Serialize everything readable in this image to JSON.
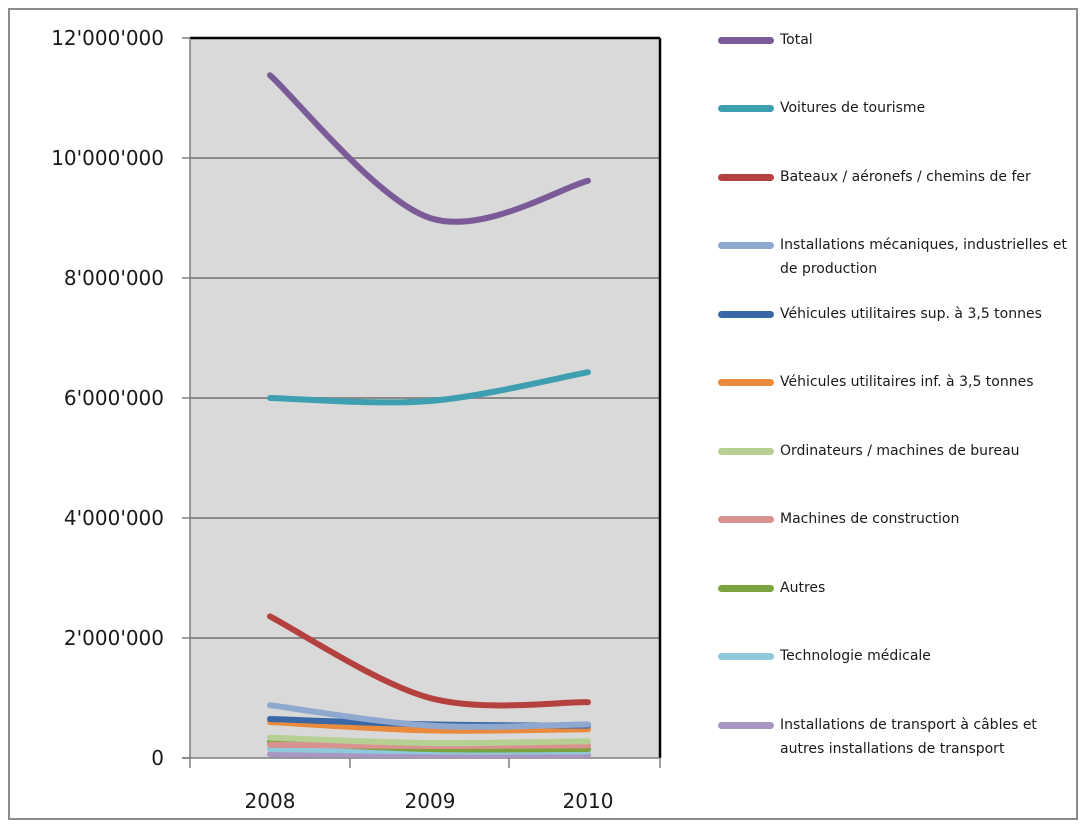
{
  "chart_data": {
    "type": "line",
    "title": "",
    "xlabel": "",
    "ylabel": "",
    "categories": [
      "2008",
      "2009",
      "2010"
    ],
    "ylim": [
      0,
      12000000
    ],
    "yticks": [
      0,
      2000000,
      4000000,
      6000000,
      8000000,
      10000000,
      12000000
    ],
    "ytick_labels": [
      "0",
      "2'000'000",
      "4'000'000",
      "6'000'000",
      "8'000'000",
      "10'000'000",
      "12'000'000"
    ],
    "grid": true,
    "legend_position": "right",
    "series": [
      {
        "name": "Total",
        "color": "#7b5b97",
        "values": [
          11380000,
          9000000,
          9620000
        ]
      },
      {
        "name": "Voitures de tourisme",
        "color": "#3d9fb0",
        "values": [
          6000000,
          5950000,
          6430000
        ]
      },
      {
        "name": "Bateaux / aéronefs / chemins de fer",
        "color": "#b5413f",
        "values": [
          2360000,
          1000000,
          930000
        ]
      },
      {
        "name": "Installations mécaniques, industrielles et de production",
        "color": "#8fa8cf",
        "values": [
          880000,
          540000,
          560000
        ]
      },
      {
        "name": "Véhicules utilitaires sup. à 3,5 tonnes",
        "color": "#3a68a6",
        "values": [
          650000,
          560000,
          540000
        ]
      },
      {
        "name": "Véhicules utilitaires inf. à 3,5 tonnes",
        "color": "#e98a3d",
        "values": [
          600000,
          460000,
          480000
        ]
      },
      {
        "name": "Ordinateurs / machines de bureau",
        "color": "#b6cf92",
        "values": [
          340000,
          250000,
          280000
        ]
      },
      {
        "name": "Machines de construction",
        "color": "#d9928f",
        "values": [
          220000,
          200000,
          210000
        ]
      },
      {
        "name": "Autres",
        "color": "#7aa33e",
        "values": [
          270000,
          150000,
          150000
        ]
      },
      {
        "name": "Technologie médicale",
        "color": "#8fc9dc",
        "values": [
          150000,
          110000,
          110000
        ]
      },
      {
        "name": "Installations de transport à câbles et autres installations de transport",
        "color": "#a897c2",
        "values": [
          60000,
          50000,
          50000
        ]
      }
    ]
  }
}
